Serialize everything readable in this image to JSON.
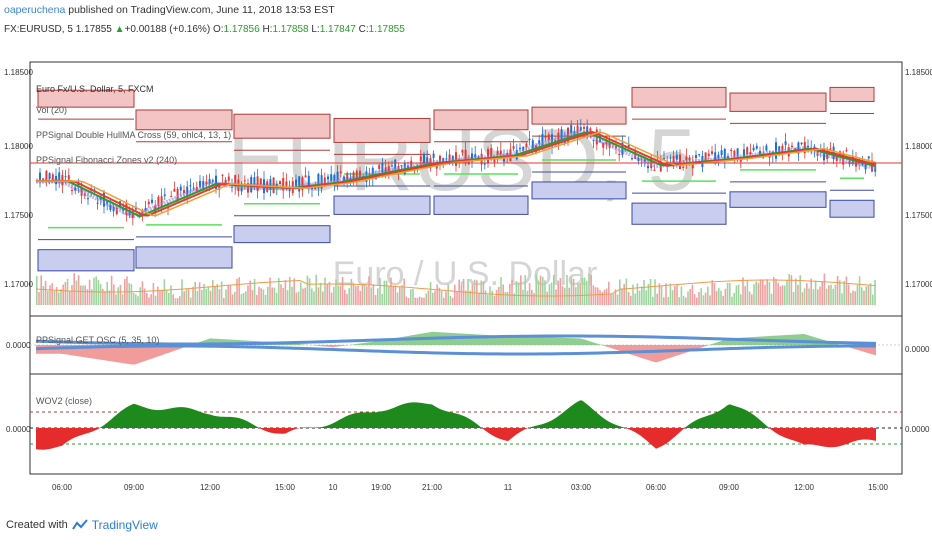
{
  "header": {
    "user": "oaperuchena",
    "published": " published on TradingView.com, June 11, 2018 13:53 EST"
  },
  "ticker": {
    "symbol": "FX:EURUSD, 5",
    "price": "1.17855",
    "arrow": "▲",
    "change": "+0.00188 (+0.16%)",
    "o_label": "O:",
    "o_val": "1.17856",
    "h_label": "H:",
    "h_val": "1.17858",
    "l_label": "L:",
    "l_val": "1.17847",
    "c_label": "C:",
    "c_val": "1.17855"
  },
  "legend": {
    "main": "Euro Fx/U.S. Dollar, 5, FXCM",
    "vol": "Vol (20)",
    "hull": "PPSignal Double HullMA Cross (59, ohlc4, 13, 1)",
    "fib": "PPSignal Fibonacci Zones v2 (240)",
    "osc": "PPSignal GET OSC (5, 35, 10)",
    "wov": "WOV2 (close)"
  },
  "watermark": {
    "big": "EURUSD, 5",
    "small": "Euro / U.S. Dollar"
  },
  "price_axis": [
    "1.18500",
    "1.18000",
    "1.17500",
    "1.17000"
  ],
  "osc_axis": [
    "0.0000"
  ],
  "wov_axis": [
    "0.0000"
  ],
  "time_axis": [
    "06:00",
    "09:00",
    "12:00",
    "15:00",
    "10",
    "19:00",
    "21:00",
    "11",
    "03:00",
    "06:00",
    "09:00",
    "12:00",
    "15:00"
  ],
  "footer": {
    "created": "Created with",
    "brand": "TradingView"
  },
  "colors": {
    "bull": "#2a9d2a",
    "bear": "#e53935",
    "zone_red": "#f2c4c4",
    "zone_red_line": "#b03a3a",
    "zone_blue": "#c9cdee",
    "zone_blue_line": "#3b4aa8",
    "osc_blue": "#5b8fd6",
    "osc_green": "#7cc47c",
    "osc_red": "#ef8a8a",
    "wov_green": "#1e8a1e",
    "wov_red": "#e52b2b"
  },
  "chart_data": [
    {
      "type": "line",
      "title": "Euro Fx/U.S. Dollar, 5, FXCM",
      "x": [
        "06:00",
        "09:00",
        "12:00",
        "15:00",
        "10",
        "19:00",
        "21:00",
        "11",
        "03:00",
        "06:00",
        "09:00",
        "12:00",
        "15:00"
      ],
      "series": [
        {
          "name": "EURUSD",
          "values": [
            1.1777,
            1.1752,
            1.1775,
            1.1772,
            1.1776,
            1.1783,
            1.179,
            1.1795,
            1.1812,
            1.1788,
            1.1793,
            1.18,
            1.1786
          ]
        }
      ],
      "ylim": [
        1.168,
        1.186
      ],
      "grid": false
    },
    {
      "type": "area",
      "title": "PPSignal GET OSC (5, 35, 10)",
      "x": [
        "06:00",
        "09:00",
        "12:00",
        "15:00",
        "10",
        "19:00",
        "21:00",
        "11",
        "03:00",
        "06:00",
        "09:00",
        "12:00",
        "15:00"
      ],
      "series": [
        {
          "name": "GET OSC",
          "values": [
            -0.0004,
            -0.0009,
            0.0003,
            0.0001,
            -0.0001,
            0.0002,
            0.0006,
            0.0004,
            0.0003,
            -0.0008,
            0.0003,
            0.0005,
            -0.0005
          ]
        }
      ]
    },
    {
      "type": "area",
      "title": "WOV2 (close)",
      "x": [
        "06:00",
        "09:00",
        "12:00",
        "15:00",
        "10",
        "19:00",
        "21:00",
        "11",
        "03:00",
        "06:00",
        "09:00",
        "12:00",
        "15:00"
      ],
      "series": [
        {
          "name": "WOV2",
          "values": [
            -0.6,
            0.7,
            0.5,
            -0.2,
            0.2,
            0.6,
            0.8,
            -0.4,
            0.8,
            -0.6,
            0.8,
            -0.6,
            -0.4
          ]
        }
      ]
    }
  ]
}
